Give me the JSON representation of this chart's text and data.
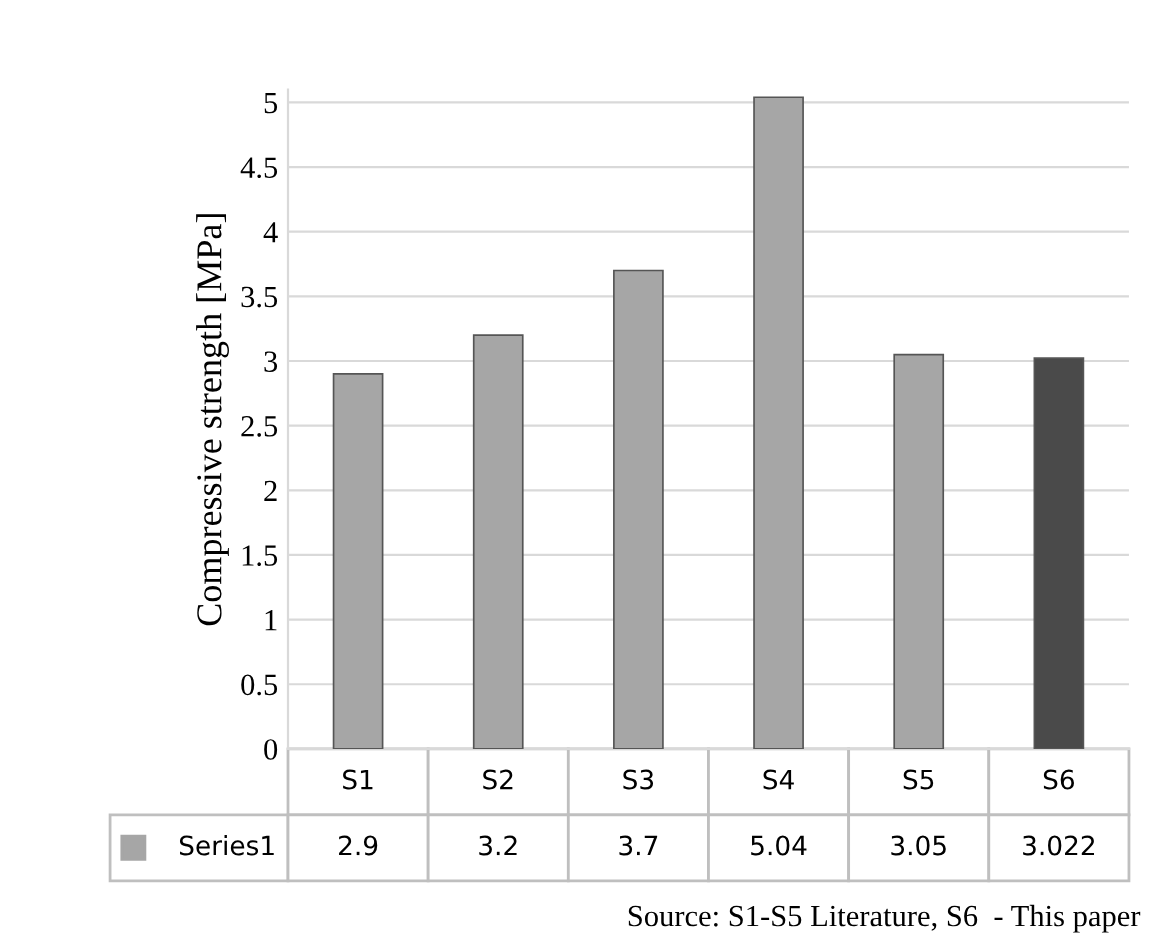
{
  "chart_data": {
    "type": "bar",
    "ylabel": "Compressive strength [MPa]",
    "categories": [
      "S1",
      "S2",
      "S3",
      "S4",
      "S5",
      "S6"
    ],
    "series": [
      {
        "name": "Series1",
        "color": "#a6a6a6",
        "colors": [
          "#a6a6a6",
          "#a6a6a6",
          "#a6a6a6",
          "#a6a6a6",
          "#a6a6a6",
          "#4a4a4a"
        ],
        "values": [
          2.9,
          3.2,
          3.7,
          5.04,
          3.05,
          3.022
        ]
      }
    ],
    "ylim": [
      0,
      5.1
    ],
    "yticks": [
      0,
      0.5,
      1,
      1.5,
      2,
      2.5,
      3,
      3.5,
      4,
      4.5,
      5
    ],
    "grid": "y",
    "data_labels": true,
    "annotations": [
      "Source: S1-S5 Literature, S6  - This paper"
    ]
  }
}
